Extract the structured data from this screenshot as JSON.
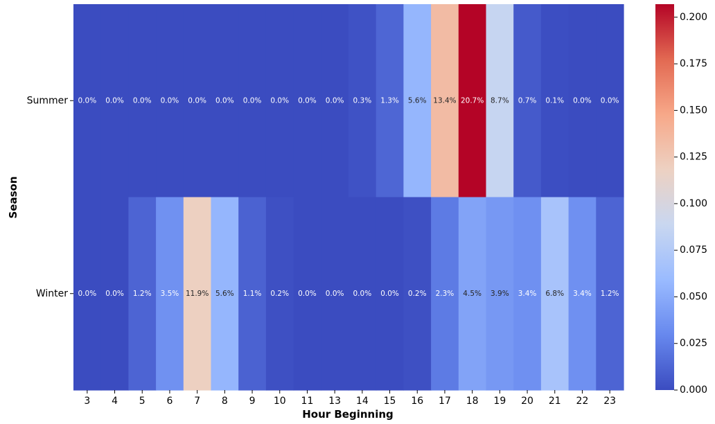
{
  "chart_data": {
    "type": "heatmap",
    "title": "",
    "xlabel": "Hour Beginning",
    "ylabel": "Season",
    "x": [
      "3",
      "4",
      "5",
      "6",
      "7",
      "8",
      "9",
      "10",
      "11",
      "13",
      "14",
      "15",
      "16",
      "17",
      "18",
      "19",
      "20",
      "21",
      "22",
      "23"
    ],
    "y": [
      "Summer",
      "Winter"
    ],
    "values": [
      [
        0.0,
        0.0,
        0.0,
        0.0,
        0.0,
        0.0,
        0.0,
        0.0,
        0.0,
        0.0,
        0.003,
        0.013,
        0.056,
        0.134,
        0.207,
        0.087,
        0.007,
        0.001,
        0.0,
        0.0
      ],
      [
        0.0,
        0.0,
        0.012,
        0.035,
        0.119,
        0.056,
        0.011,
        0.002,
        0.0,
        0.0,
        0.0,
        0.0,
        0.002,
        0.023,
        0.045,
        0.039,
        0.034,
        0.068,
        0.034,
        0.012
      ]
    ],
    "cell_labels": [
      [
        "0.0%",
        "0.0%",
        "0.0%",
        "0.0%",
        "0.0%",
        "0.0%",
        "0.0%",
        "0.0%",
        "0.0%",
        "0.0%",
        "0.3%",
        "1.3%",
        "5.6%",
        "13.4%",
        "20.7%",
        "8.7%",
        "0.7%",
        "0.1%",
        "0.0%",
        "0.0%"
      ],
      [
        "0.0%",
        "0.0%",
        "1.2%",
        "3.5%",
        "11.9%",
        "5.6%",
        "1.1%",
        "0.2%",
        "0.0%",
        "0.0%",
        "0.0%",
        "0.0%",
        "0.2%",
        "2.3%",
        "4.5%",
        "3.9%",
        "3.4%",
        "6.8%",
        "3.4%",
        "1.2%"
      ]
    ],
    "colorbar": {
      "colormap": "coolwarm",
      "range": [
        0,
        0.207
      ],
      "ticks": [
        "0.000",
        "0.025",
        "0.050",
        "0.075",
        "0.100",
        "0.125",
        "0.150",
        "0.175",
        "0.200"
      ],
      "colors": [
        "#3b4cc0",
        "#6788ee",
        "#9abbff",
        "#c9d7f0",
        "#edd1c2",
        "#f7a889",
        "#e26952",
        "#b40426"
      ]
    },
    "grid": false,
    "legend": "colorbar-right"
  }
}
